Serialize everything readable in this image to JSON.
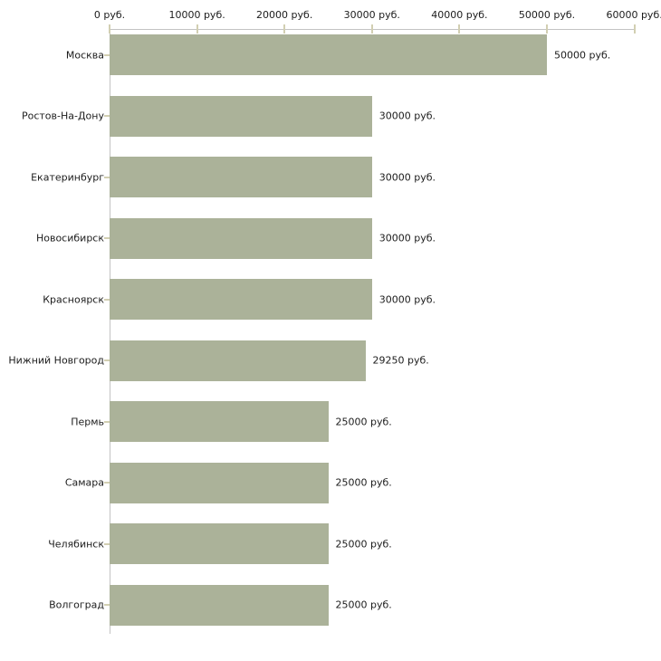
{
  "chart_data": {
    "type": "bar",
    "orientation": "horizontal",
    "title": "",
    "unit": "руб.",
    "categories": [
      "Москва",
      "Ростов-На-Дону",
      "Екатеринбург",
      "Новосибирск",
      "Красноярск",
      "Нижний Новгород",
      "Пермь",
      "Самара",
      "Челябинск",
      "Волгоград"
    ],
    "values": [
      50000,
      30000,
      30000,
      30000,
      30000,
      29250,
      25000,
      25000,
      25000,
      25000
    ],
    "value_labels": [
      "50000 руб.",
      "30000 руб.",
      "30000 руб.",
      "30000 руб.",
      "30000 руб.",
      "29250 руб.",
      "25000 руб.",
      "25000 руб.",
      "25000 руб.",
      "25000 руб."
    ],
    "x_ticks": [
      {
        "value": 0,
        "label": "0 руб."
      },
      {
        "value": 10000,
        "label": "10000 руб."
      },
      {
        "value": 20000,
        "label": "20000 руб."
      },
      {
        "value": 30000,
        "label": "30000 руб."
      },
      {
        "value": 40000,
        "label": "40000 руб."
      },
      {
        "value": 50000,
        "label": "50000 руб."
      },
      {
        "value": 60000,
        "label": "60000 руб."
      }
    ],
    "xlim": [
      0,
      60000
    ],
    "grid": false,
    "legend": "none",
    "axis_position": "top",
    "colors": {
      "bar": "#abb299",
      "axis_line": "#c3c3c3",
      "tick_mark": "#d2cfb2",
      "text": "#1c1c1c",
      "background": "#ffffff"
    }
  }
}
